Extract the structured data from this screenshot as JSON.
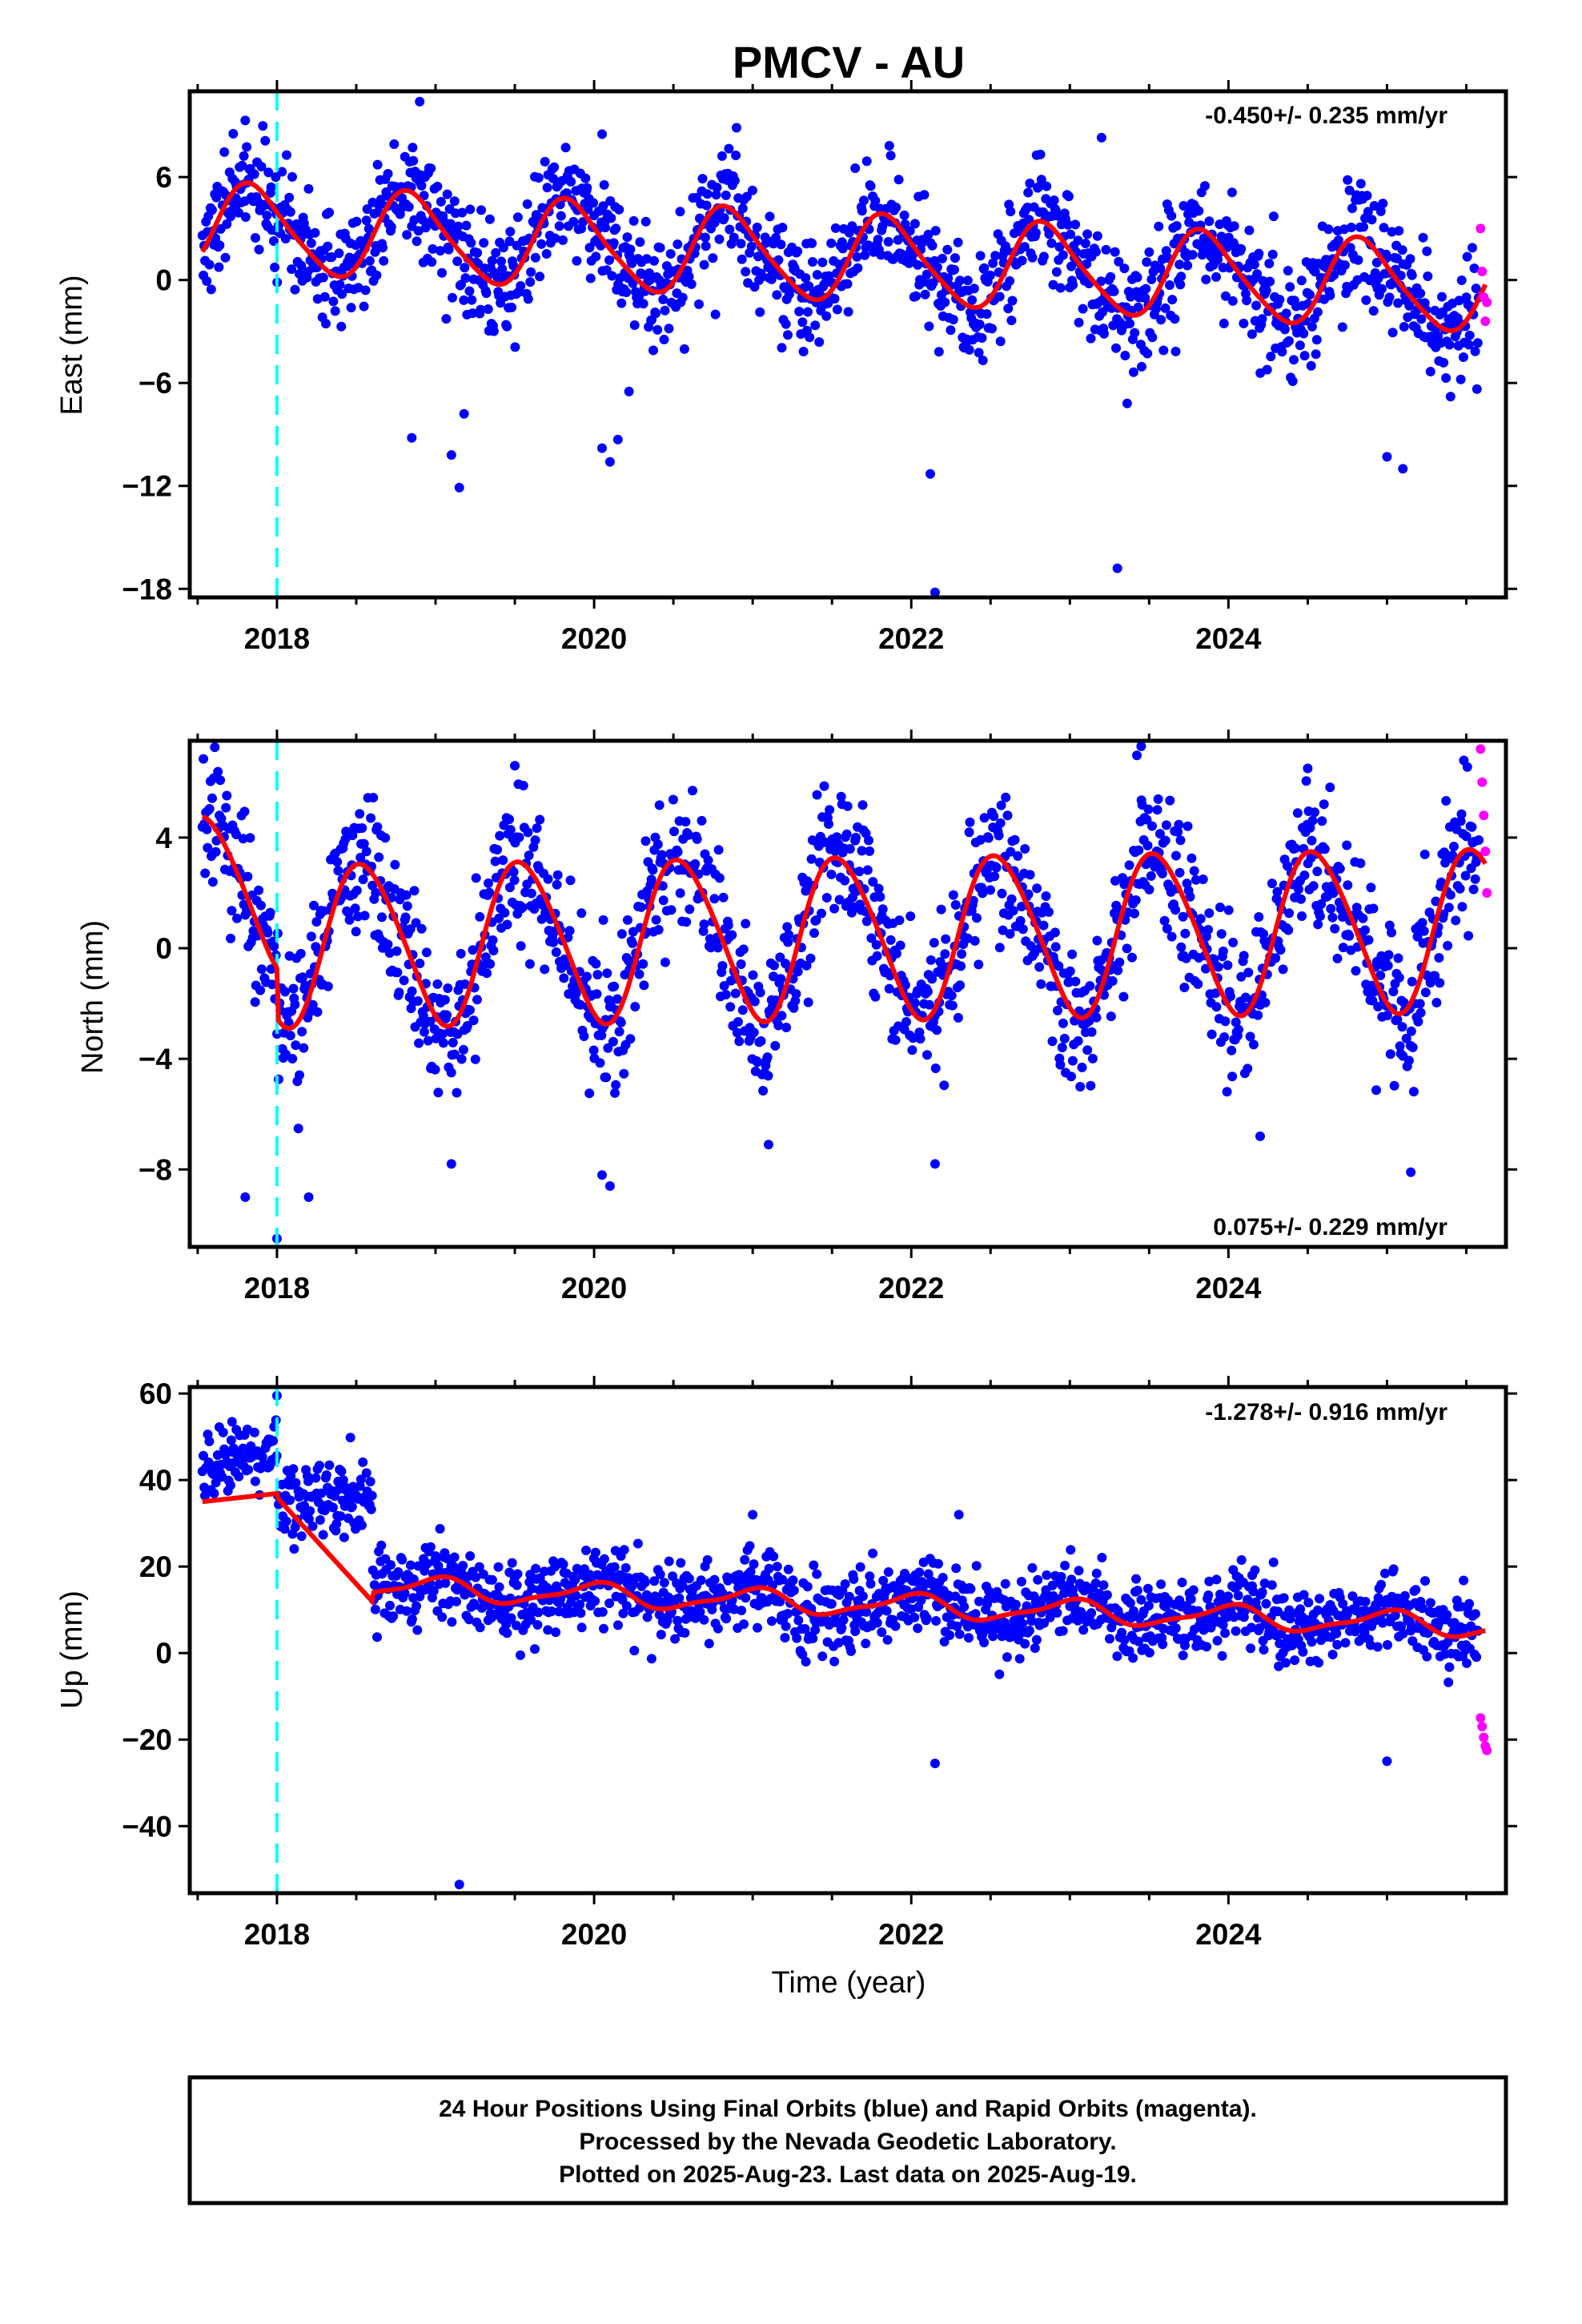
{
  "title": "PMCV - AU",
  "footer": {
    "line1": "24 Hour Positions Using Final Orbits (blue) and Rapid Orbits (magenta).",
    "line2": "Processed by the Nevada Geodetic Laboratory.",
    "line3": "Plotted on 2025-Aug-23. Last data on 2025-Aug-19."
  },
  "colors": {
    "final_points": "#0000ff",
    "rapid_points": "#ff00ff",
    "model": "#ff0000",
    "offset_line": "#00ffff"
  },
  "chart_data": [
    {
      "type": "scatter",
      "component": "East",
      "ylabel": "East (mm)",
      "xlabel": "",
      "rate_label": "-0.450+/- 0.235 mm/yr",
      "xlim": [
        2017.45,
        2025.75
      ],
      "ylim": [
        -18.5,
        11.0
      ],
      "xticks": [
        2018,
        2020,
        2022,
        2024
      ],
      "yticks": [
        6,
        0,
        -6,
        -12,
        -18
      ],
      "ytick_labels": [
        "6",
        "0",
        "−6",
        "−12",
        "−18"
      ],
      "offset_epochs": [
        2018.0
      ],
      "model": {
        "base": 1.3,
        "trend": -0.45,
        "annual_amp": 2.5,
        "annual_peak": 0.85,
        "semiannual_amp": 0.4,
        "semiannual_peak": 0.25,
        "offset": 0
      },
      "scatter_sd": 1.7,
      "outliers": [
        [
          2017.8,
          9.3
        ],
        [
          2018.85,
          -9.2
        ],
        [
          2019.1,
          -10.2
        ],
        [
          2019.15,
          -12.1
        ],
        [
          2019.18,
          -7.8
        ],
        [
          2020.05,
          -9.8
        ],
        [
          2020.1,
          -10.6
        ],
        [
          2020.15,
          -9.3
        ],
        [
          2020.22,
          -6.5
        ],
        [
          2018.9,
          10.4
        ],
        [
          2020.05,
          8.5
        ],
        [
          2022.12,
          -11.3
        ],
        [
          2022.15,
          -18.2
        ],
        [
          2023.3,
          -16.8
        ],
        [
          2023.2,
          8.3
        ],
        [
          2025.1,
          -11.0
        ],
        [
          2025.0,
          -10.3
        ]
      ],
      "rapid": [
        [
          2025.59,
          3.0
        ],
        [
          2025.6,
          0.5
        ],
        [
          2025.61,
          -1.0
        ],
        [
          2025.62,
          -2.4
        ],
        [
          2025.63,
          -1.3
        ]
      ]
    },
    {
      "type": "scatter",
      "component": "North",
      "ylabel": "North (mm)",
      "xlabel": "",
      "rate_label": "0.075+/- 0.229 mm/yr",
      "xlim": [
        2017.45,
        2025.75
      ],
      "ylim": [
        -10.8,
        7.5
      ],
      "xticks": [
        2018,
        2020,
        2022,
        2024
      ],
      "yticks": [
        4,
        0,
        -4,
        -8
      ],
      "ytick_labels": [
        "4",
        "0",
        "−4",
        "−8"
      ],
      "offset_epochs": [
        2018.0
      ],
      "model": {
        "base": 0.4,
        "trend": 0.075,
        "annual_amp": 2.9,
        "annual_peak": 0.55,
        "semiannual_amp": 0.3,
        "semiannual_peak": 0.4,
        "offset": 1.8
      },
      "scatter_sd": 1.3,
      "outliers": [
        [
          2018.0,
          -10.5
        ],
        [
          2017.8,
          -9.0
        ],
        [
          2018.2,
          -9.0
        ],
        [
          2019.1,
          -7.8
        ],
        [
          2020.1,
          -8.6
        ],
        [
          2020.05,
          -8.2
        ],
        [
          2021.1,
          -7.1
        ],
        [
          2022.15,
          -7.8
        ],
        [
          2024.2,
          -6.8
        ],
        [
          2025.15,
          -8.1
        ],
        [
          2019.5,
          6.6
        ],
        [
          2023.45,
          7.3
        ],
        [
          2024.5,
          6.5
        ]
      ],
      "rapid": [
        [
          2025.59,
          7.2
        ],
        [
          2025.6,
          6.0
        ],
        [
          2025.61,
          4.8
        ],
        [
          2025.62,
          3.5
        ],
        [
          2025.63,
          2.0
        ]
      ]
    },
    {
      "type": "scatter",
      "component": "Up",
      "ylabel": "Up (mm)",
      "xlabel": "Time (year)",
      "rate_label": "-1.278+/- 0.916 mm/yr",
      "xlim": [
        2017.45,
        2025.75
      ],
      "ylim": [
        -55.5,
        61.5
      ],
      "xticks": [
        2018,
        2020,
        2022,
        2024
      ],
      "yticks": [
        60,
        40,
        20,
        0,
        -20,
        -40
      ],
      "ytick_labels": [
        "60",
        "40",
        "20",
        "0",
        "−20",
        "−40"
      ],
      "offset_epochs": [
        2018.0
      ],
      "model": {
        "base": 11.5,
        "trend": -1.278,
        "annual_amp": 2.5,
        "annual_peak": 0.0,
        "semiannual_amp": 0.8,
        "semiannual_peak": 0.1,
        "offset": 28.0,
        "offset_extra_end": 2018.6,
        "offset_extra": 28.0
      },
      "scatter_sd": 4.5,
      "outliers": [
        [
          2018.0,
          59.5
        ],
        [
          2019.15,
          -53.5
        ],
        [
          2022.15,
          -25.5
        ],
        [
          2021.0,
          32.0
        ],
        [
          2022.3,
          32.0
        ],
        [
          2024.15,
          18.0
        ],
        [
          2025.0,
          -25.0
        ]
      ],
      "rapid": [
        [
          2025.59,
          -15.0
        ],
        [
          2025.6,
          -17.0
        ],
        [
          2025.61,
          -19.5
        ],
        [
          2025.62,
          -21.5
        ],
        [
          2025.63,
          -22.5
        ]
      ]
    }
  ]
}
